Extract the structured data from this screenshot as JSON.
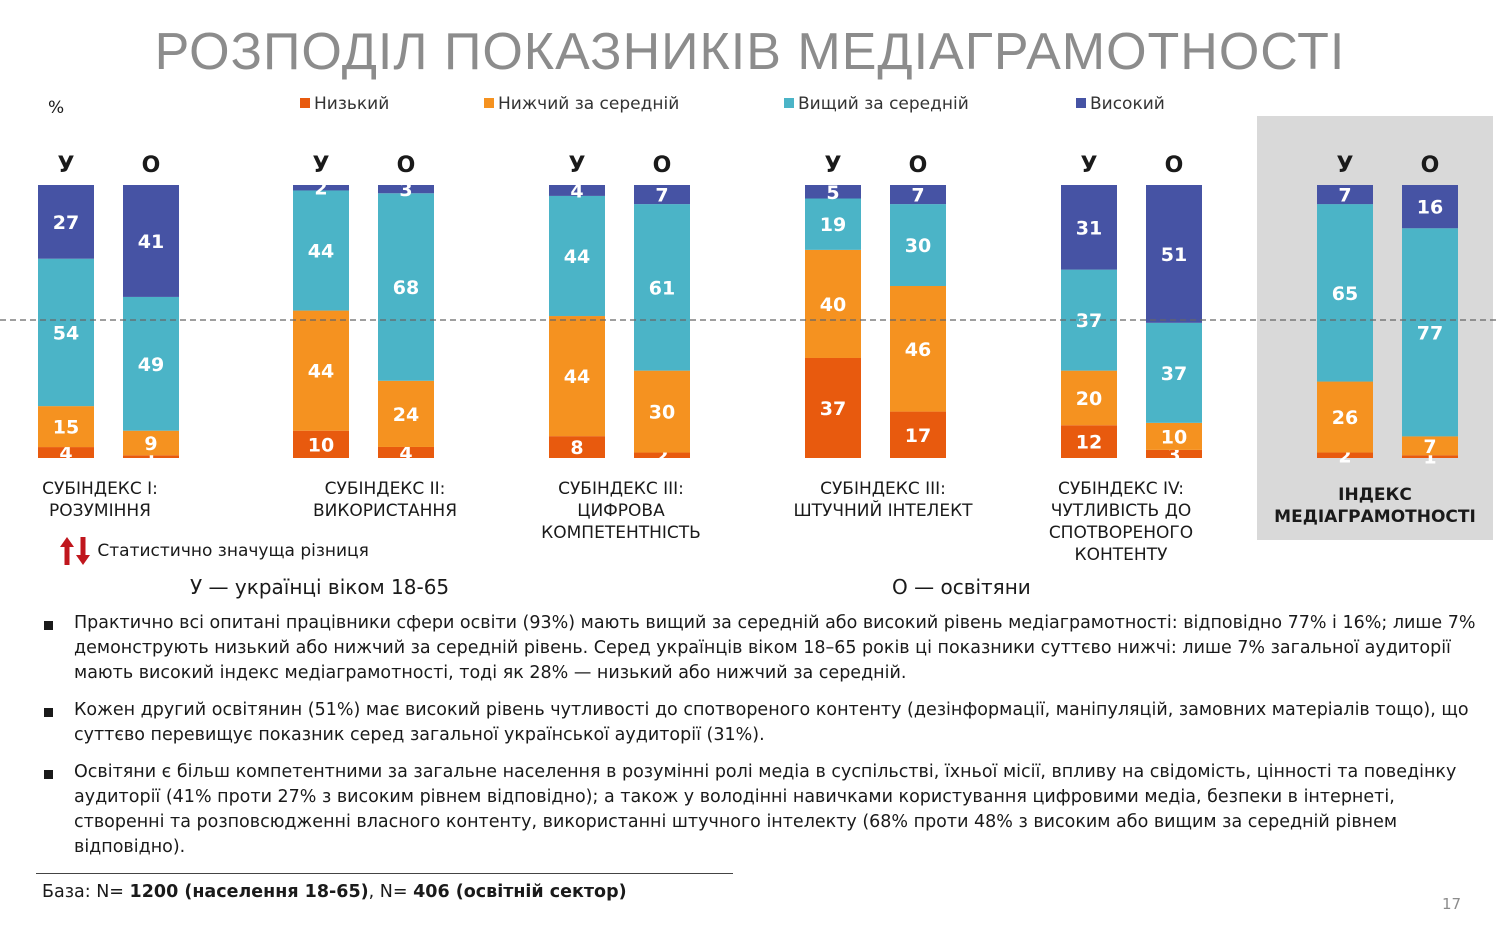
{
  "title": "РОЗПОДІЛ ПОКАЗНИКІВ МЕДІАГРАМОТНОСТІ",
  "unit": "%",
  "colors": {
    "low": "#e85a0e",
    "below": "#f59220",
    "above": "#4bb4c7",
    "high": "#4653a4",
    "index_panel": "#d9d9d9"
  },
  "legend": [
    {
      "label": "Низький",
      "color": "#e85a0e"
    },
    {
      "label": "Нижчий за середній",
      "color": "#f59220"
    },
    {
      "label": "Вищий за середній",
      "color": "#4bb4c7"
    },
    {
      "label": "Високий",
      "color": "#4653a4"
    }
  ],
  "chart_data": {
    "type": "bar",
    "stacked": true,
    "unit": "%",
    "stack_order": [
      "Низький",
      "Нижчий за середній",
      "Вищий за середній",
      "Високий"
    ],
    "reference_line": "dashed",
    "groups": [
      {
        "label": "СУБІНДЕКС І:\nРОЗУМІННЯ",
        "bars": [
          {
            "code": "У",
            "values": [
              4,
              15,
              54,
              27
            ]
          },
          {
            "code": "О",
            "values": [
              1,
              9,
              49,
              41
            ]
          }
        ]
      },
      {
        "label": "СУБІНДЕКС ІІ:\nВИКОРИСТАННЯ",
        "bars": [
          {
            "code": "У",
            "values": [
              10,
              44,
              44,
              2
            ]
          },
          {
            "code": "О",
            "values": [
              4,
              24,
              68,
              3
            ]
          }
        ]
      },
      {
        "label": "СУБІНДЕКС ІІІ:\nЦИФРОВА\nКОМПЕТЕНТНІСТЬ",
        "bars": [
          {
            "code": "У",
            "values": [
              8,
              44,
              44,
              4
            ]
          },
          {
            "code": "О",
            "values": [
              2,
              30,
              61,
              7
            ]
          }
        ]
      },
      {
        "label": "СУБІНДЕКС ІІІ:\nШТУЧНИЙ ІНТЕЛЕКТ",
        "bars": [
          {
            "code": "У",
            "values": [
              37,
              40,
              19,
              5
            ]
          },
          {
            "code": "О",
            "values": [
              17,
              46,
              30,
              7
            ]
          }
        ]
      },
      {
        "label": "СУБІНДЕКС IV:\nЧУТЛИВІСТЬ ДО\nСПОТВОРЕНОГО\nКОНТЕНТУ",
        "bars": [
          {
            "code": "У",
            "values": [
              12,
              20,
              37,
              31
            ]
          },
          {
            "code": "О",
            "values": [
              3,
              10,
              37,
              51
            ]
          }
        ]
      },
      {
        "label": "ІНДЕКС\nМЕДІАГРАМОТНОСТІ",
        "highlight": true,
        "bars": [
          {
            "code": "У",
            "values": [
              2,
              26,
              65,
              7
            ]
          },
          {
            "code": "О",
            "values": [
              1,
              7,
              77,
              16
            ]
          }
        ]
      }
    ]
  },
  "significance_label": "Статистично значуща різниця",
  "abbr_u": "У — українці віком 18-65",
  "abbr_o": "О — освітяни",
  "notes": [
    "Практично всі опитані працівники сфери освіти (93%) мають вищий за середній або високий рівень медіаграмотності: відповідно 77% і 16%; лише 7% демонструють низький або нижчий за середній рівень. Серед українців віком 18–65 років ці показники суттєво нижчі: лише 7% загальної аудиторії мають високий індекс медіаграмотності, тоді як 28% — низький або нижчий за середній.",
    "Кожен другий освітянин (51%) має високий рівень чутливості до спотвореного контенту (дезінформації, маніпуляцій, замовних матеріалів тощо), що суттєво перевищує показник серед загальної української аудиторії (31%).",
    "Освітяни є більш компетентними за загальне населення в розумінні ролі медіа в суспільстві, їхньої місії, впливу на свідомість, цінності та поведінку аудиторії (41% проти 27% з високим рівнем відповідно); а також у володінні навичками користування цифровими медіа, безпеки в інтернеті, створенні та розповсюдженні власного контенту, використанні штучного інтелекту (68% проти 48% з високим або вищим за середній рівнем відповідно)."
  ],
  "base": {
    "prefix": "База: N= ",
    "n1": "1200 (населення 18-65)",
    "sep": ", N= ",
    "n2": "406 (освітній сектор)"
  },
  "page_number": "17"
}
